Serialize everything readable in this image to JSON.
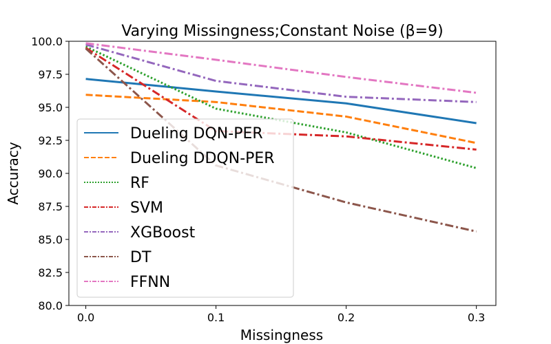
{
  "chart_data": {
    "type": "line",
    "title": "Varying Missingness;Constant Noise (β=9)",
    "xlabel": "Missingness",
    "ylabel": "Accuracy",
    "xlim": [
      -0.013,
      0.315
    ],
    "ylim": [
      80.0,
      100.0
    ],
    "x_ticks": [
      "0.0",
      "0.1",
      "0.2",
      "0.3"
    ],
    "y_ticks": [
      "80.0",
      "82.5",
      "85.0",
      "87.5",
      "90.0",
      "92.5",
      "95.0",
      "97.5",
      "100.0"
    ],
    "x": [
      0.0,
      0.1,
      0.2,
      0.3
    ],
    "grid": false,
    "legend_position": "lower-left",
    "series": [
      {
        "name": "Dueling DQN-PER",
        "color": "#1f77b4",
        "dash": "solid",
        "values": [
          97.15,
          96.2,
          95.3,
          93.8
        ]
      },
      {
        "name": "Dueling DDQN-PER",
        "color": "#ff7f0e",
        "dash": "dashed",
        "values": [
          95.95,
          95.4,
          94.3,
          92.3
        ]
      },
      {
        "name": "RF",
        "color": "#2ca02c",
        "dash": "dotted",
        "values": [
          99.6,
          94.9,
          93.1,
          90.4
        ]
      },
      {
        "name": "SVM",
        "color": "#d62728",
        "dash": "dashdot",
        "values": [
          99.5,
          93.2,
          92.8,
          91.8
        ]
      },
      {
        "name": "XGBoost",
        "color": "#9467bd",
        "dash": "dashdot",
        "values": [
          99.75,
          97.0,
          95.8,
          95.4
        ]
      },
      {
        "name": "DT",
        "color": "#8c564b",
        "dash": "dashdot",
        "values": [
          99.45,
          90.6,
          87.8,
          85.6
        ]
      },
      {
        "name": "FFNN",
        "color": "#e377c2",
        "dash": "dashdot",
        "values": [
          99.85,
          98.6,
          97.3,
          96.1
        ]
      }
    ]
  }
}
